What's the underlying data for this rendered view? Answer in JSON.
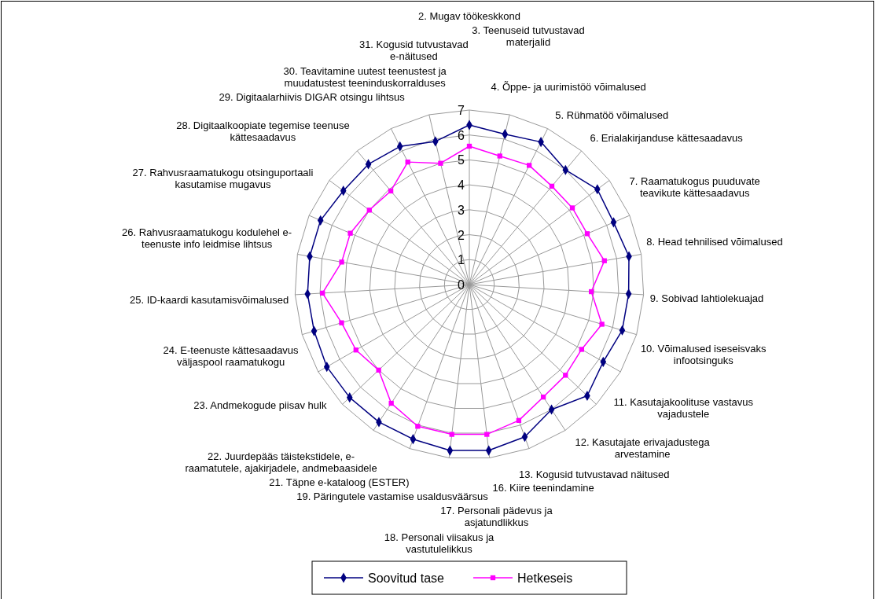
{
  "chart_data": {
    "type": "radar",
    "categories": [
      "2. Mugav töökeskkond",
      "3. Teenuseid tutvustavad materjalid",
      "4. Õppe- ja uurimistöö võimalused",
      "5. Rühmatöö võimalused",
      "6. Erialakirjanduse kättesaadavus",
      "7. Raamatukogus puuduvate\nteavikute kättesaadavus",
      "8. Head tehnilised võimalused",
      "9. Sobivad lahtiolekuajad",
      "10. Võimalused iseseisvaks\ninfootsinguks",
      "11. Kasutajakoolituse vastavus\nvajadustele",
      "12. Kasutajate erivajadustega\narvestamine",
      "13. Kogusid tutvustavad näitused",
      "16. Kiire teenindamine",
      "17. Personali pädevus ja asjatundlikkus",
      "18. Personali viisakus ja vastutulelikkus",
      "19. Päringutele vastamise usaldusväärsus",
      "21. Täpne e-kataloog (ESTER)",
      "22. Juurdepääs täistekstidele, e-\nraamatutele, ajakirjadele, andmebaasidele",
      "23. Andmekogude piisav hulk",
      "24. E-teenuste kättesaadavus\nväljaspool raamatukogu",
      "25. ID-kaardi kasutamisvõimalused",
      "26. Rahvusraamatukogu kodulehel e-\nteenuste info leidmise lihtsus",
      "27. Rahvusraamatukogu otsinguportaali\nkasutamise mugavus",
      "28. Digitaalkoopiate tegemise teenuse\nkättesaadavus",
      "29. Digitaalarhiivis DIGAR otsingu lihtsus",
      "30. Teavitamine uutest teenustest ja\nmuudatustest teeninduskorralduses",
      "31. Kogusid tutvustavad e-näitused"
    ],
    "series": [
      {
        "name": "Soovitud tase",
        "color": "#000080",
        "marker": "diamond",
        "values": [
          6.4,
          6.2,
          6.4,
          6.0,
          6.4,
          6.3,
          6.5,
          6.4,
          6.4,
          6.2,
          6.5,
          6.0,
          6.5,
          6.7,
          6.7,
          6.6,
          6.6,
          6.6,
          6.6,
          6.5,
          6.5,
          6.5,
          6.5,
          6.3,
          6.3,
          6.2,
          5.9
        ]
      },
      {
        "name": "Hetkeseis",
        "color": "#ff00ff",
        "marker": "square",
        "values": [
          5.55,
          5.3,
          5.35,
          5.15,
          5.15,
          5.15,
          5.5,
          4.9,
          5.55,
          5.2,
          5.3,
          5.4,
          5.8,
          6.05,
          6.05,
          6.05,
          5.7,
          5.0,
          5.25,
          5.35,
          5.9,
          5.2,
          5.2,
          5.0,
          4.9,
          5.5,
          5.0
        ]
      }
    ],
    "ylim": [
      0,
      7
    ],
    "yticks": [
      0,
      1,
      2,
      3,
      4,
      5,
      6,
      7
    ],
    "grid": true,
    "legend": "bottom"
  }
}
